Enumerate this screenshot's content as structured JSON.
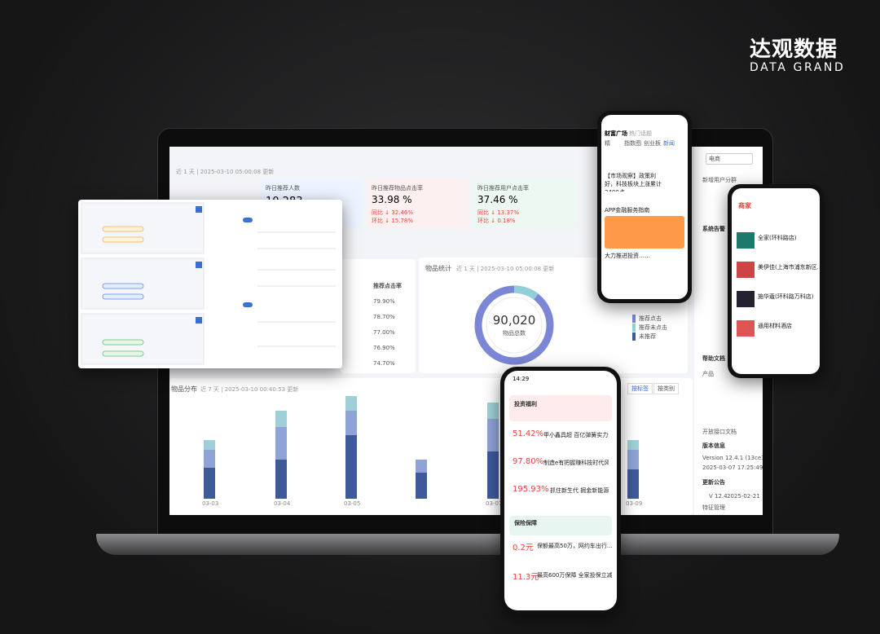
{
  "brand": {
    "name": "达观数据",
    "sub": "DATA GRAND"
  },
  "dashboard": {
    "updated": "近 1 天 | 2025-03-10 05:00:08 更新",
    "kpis": [
      {
        "label": "昨日推荐人数",
        "value": "10,283"
      },
      {
        "label": "昨日推荐物品点击率",
        "value": "33.98 %",
        "yoy": "同比 ↓ 32.46%",
        "mom": "环比 ↓ 15.78%"
      },
      {
        "label": "昨日推荐用户点击率",
        "value": "37.46 %",
        "yoy": "同比 ↓ 13.37%",
        "mom": "环比 ↓ 0.18%"
      }
    ],
    "table": {
      "header": "推荐点击率",
      "rows": [
        "79.90%",
        "78.70%",
        "77.00%",
        "76.90%",
        "74.70%"
      ]
    },
    "donut": {
      "title": "物品统计",
      "updated": "近 1 天 | 2025-03-10 05:00:08 更新",
      "value": "90,020",
      "label": "物品总数",
      "legend": [
        "推荐点击",
        "推荐未点击",
        "未推荐"
      ]
    },
    "distribution": {
      "title": "物品分布",
      "updated": "近 7 天 | 2025-03-10 00:40:53 更新",
      "tabs": [
        "按标签",
        "按类别"
      ],
      "dates": [
        "03-03",
        "03-04",
        "03-05",
        "03-07",
        "03-09"
      ]
    },
    "sidebar": {
      "select": "电商",
      "items": [
        "新增用户分群",
        "系统告警",
        "帮助文档",
        "产品",
        "开放接口文档",
        "版本信息",
        "Version  12.4.1 (13ce37c)",
        "2025-03-07 17:25:49",
        "更新公告",
        "V 12.4",
        "2025-02-21",
        "特征管理"
      ]
    }
  },
  "phone_top": {
    "tabs": [
      "财富广场",
      "热门话题"
    ],
    "cats": [
      "精",
      "指数图",
      "创业板",
      "新闻"
    ],
    "news": [
      "【市场观察】政策利好，科技板块上涨累计3400点",
      "APP金融服务指南",
      "大力推进投资……"
    ]
  },
  "phone_center": {
    "time": "14:29",
    "section1": "投资福利",
    "items": [
      {
        "rate": "51.42%",
        "text": "甲小鑫具超 百亿弹簧实力佣金"
      },
      {
        "rate": "97.80%",
        "text": "制造e有把握赚科技时代风口"
      },
      {
        "rate": "195.93%",
        "text": "抓住新生代 掘金新能源"
      }
    ],
    "section2": "保险保障",
    "insure": [
      {
        "price": "0.2元",
        "text": "保额最高50万，网约车出行..."
      },
      {
        "price": "11.3元",
        "text": "最高600万保障 全家投保立减..."
      }
    ]
  },
  "phone_right": {
    "tab": "商家",
    "shops": [
      "全家(环科路店)",
      "美伊佳(上海市浦东新区...)",
      "施华蔻(环科路万科店)",
      "通用材料酒店"
    ]
  }
}
